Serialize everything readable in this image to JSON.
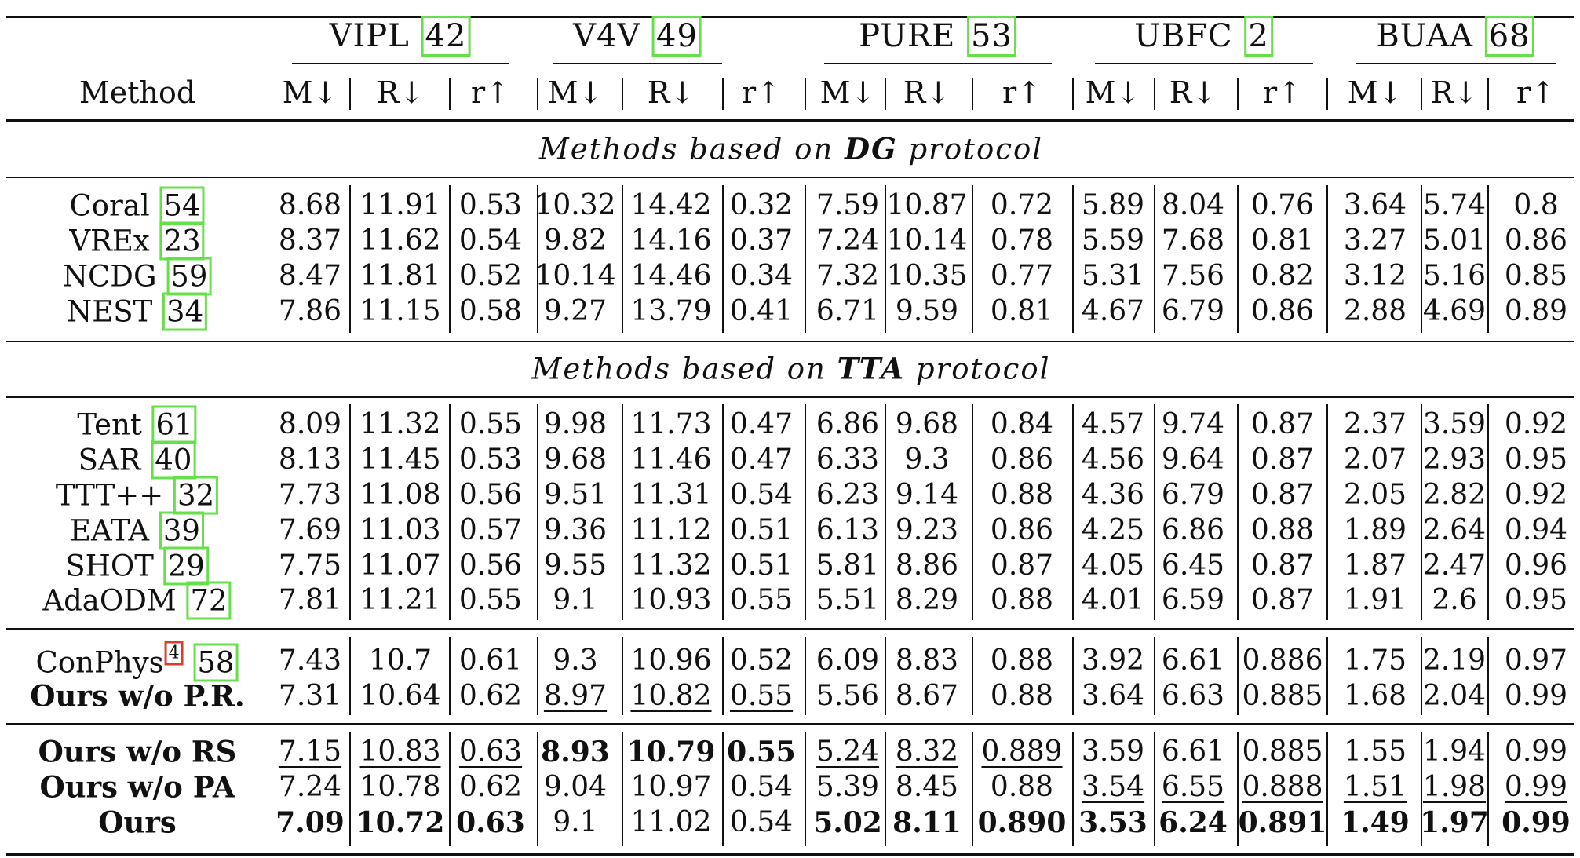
{
  "header": {
    "method_label": "Method",
    "datasets": [
      {
        "name": "VIPL",
        "ref": "42"
      },
      {
        "name": "V4V",
        "ref": "49"
      },
      {
        "name": "PURE",
        "ref": "53"
      },
      {
        "name": "UBFC",
        "ref": "2"
      },
      {
        "name": "BUAA",
        "ref": "68"
      }
    ],
    "metrics": [
      "M↓",
      "R↓",
      "r↑"
    ]
  },
  "sections": {
    "dg": {
      "prefix": "Methods based on ",
      "bold": "DG",
      "suffix": " protocol"
    },
    "tta": {
      "prefix": "Methods based on ",
      "bold": "TTA",
      "suffix": " protocol"
    }
  },
  "rows": [
    {
      "name": "Coral",
      "ref": "54",
      "vals": [
        "8.68",
        "11.91",
        "0.53",
        "10.32",
        "14.42",
        "0.32",
        "7.59",
        "10.87",
        "0.72",
        "5.89",
        "8.04",
        "0.76",
        "3.64",
        "5.74",
        "0.8"
      ]
    },
    {
      "name": "VREx",
      "ref": "23",
      "vals": [
        "8.37",
        "11.62",
        "0.54",
        "9.82",
        "14.16",
        "0.37",
        "7.24",
        "10.14",
        "0.78",
        "5.59",
        "7.68",
        "0.81",
        "3.27",
        "5.01",
        "0.86"
      ]
    },
    {
      "name": "NCDG",
      "ref": "59",
      "vals": [
        "8.47",
        "11.81",
        "0.52",
        "10.14",
        "14.46",
        "0.34",
        "7.32",
        "10.35",
        "0.77",
        "5.31",
        "7.56",
        "0.82",
        "3.12",
        "5.16",
        "0.85"
      ]
    },
    {
      "name": "NEST",
      "ref": "34",
      "vals": [
        "7.86",
        "11.15",
        "0.58",
        "9.27",
        "13.79",
        "0.41",
        "6.71",
        "9.59",
        "0.81",
        "4.67",
        "6.79",
        "0.86",
        "2.88",
        "4.69",
        "0.89"
      ]
    },
    {
      "name": "Tent",
      "ref": "61",
      "vals": [
        "8.09",
        "11.32",
        "0.55",
        "9.98",
        "11.73",
        "0.47",
        "6.86",
        "9.68",
        "0.84",
        "4.57",
        "9.74",
        "0.87",
        "2.37",
        "3.59",
        "0.92"
      ]
    },
    {
      "name": "SAR",
      "ref": "40",
      "vals": [
        "8.13",
        "11.45",
        "0.53",
        "9.68",
        "11.46",
        "0.47",
        "6.33",
        "9.3",
        "0.86",
        "4.56",
        "9.64",
        "0.87",
        "2.07",
        "2.93",
        "0.95"
      ]
    },
    {
      "name": "TTT++",
      "ref": "32",
      "vals": [
        "7.73",
        "11.08",
        "0.56",
        "9.51",
        "11.31",
        "0.54",
        "6.23",
        "9.14",
        "0.88",
        "4.36",
        "6.79",
        "0.87",
        "2.05",
        "2.82",
        "0.92"
      ]
    },
    {
      "name": "EATA",
      "ref": "39",
      "vals": [
        "7.69",
        "11.03",
        "0.57",
        "9.36",
        "11.12",
        "0.51",
        "6.13",
        "9.23",
        "0.86",
        "4.25",
        "6.86",
        "0.88",
        "1.89",
        "2.64",
        "0.94"
      ]
    },
    {
      "name": "SHOT",
      "ref": "29",
      "vals": [
        "7.75",
        "11.07",
        "0.56",
        "9.55",
        "11.32",
        "0.51",
        "5.81",
        "8.86",
        "0.87",
        "4.05",
        "6.45",
        "0.87",
        "1.87",
        "2.47",
        "0.96"
      ]
    },
    {
      "name": "AdaODM",
      "ref": "72",
      "vals": [
        "7.81",
        "11.21",
        "0.55",
        "9.1",
        "10.93",
        "0.55",
        "5.51",
        "8.29",
        "0.88",
        "4.01",
        "6.59",
        "0.87",
        "1.91",
        "2.6",
        "0.95"
      ]
    },
    {
      "name": "ConPhys",
      "sup": "4",
      "ref": "58",
      "vals": [
        "7.43",
        "10.7",
        "0.61",
        "9.3",
        "10.96",
        "0.52",
        "6.09",
        "8.83",
        "0.88",
        "3.92",
        "6.61",
        "0.886",
        "1.75",
        "2.19",
        "0.97"
      ]
    },
    {
      "name": "Ours w/o P.R.",
      "vals": [
        "7.31",
        "10.64",
        "0.62",
        "8.97",
        "10.82",
        "0.55",
        "5.56",
        "8.67",
        "0.88",
        "3.64",
        "6.63",
        "0.885",
        "1.68",
        "2.04",
        "0.99"
      ]
    },
    {
      "name": "Ours w/o RS",
      "vals": [
        "7.15",
        "10.83",
        "0.63",
        "8.93",
        "10.79",
        "0.55",
        "5.24",
        "8.32",
        "0.889",
        "3.59",
        "6.61",
        "0.885",
        "1.55",
        "1.94",
        "0.99"
      ]
    },
    {
      "name": "Ours w/o PA",
      "vals": [
        "7.24",
        "10.78",
        "0.62",
        "9.04",
        "10.97",
        "0.54",
        "5.39",
        "8.45",
        "0.88",
        "3.54",
        "6.55",
        "0.888",
        "1.51",
        "1.98",
        "0.99"
      ]
    },
    {
      "name": "Ours",
      "vals": [
        "7.09",
        "10.72",
        "0.63",
        "9.1",
        "11.02",
        "0.54",
        "5.02",
        "8.11",
        "0.890",
        "3.53",
        "6.24",
        "0.891",
        "1.49",
        "1.97",
        "0.99"
      ]
    }
  ]
}
